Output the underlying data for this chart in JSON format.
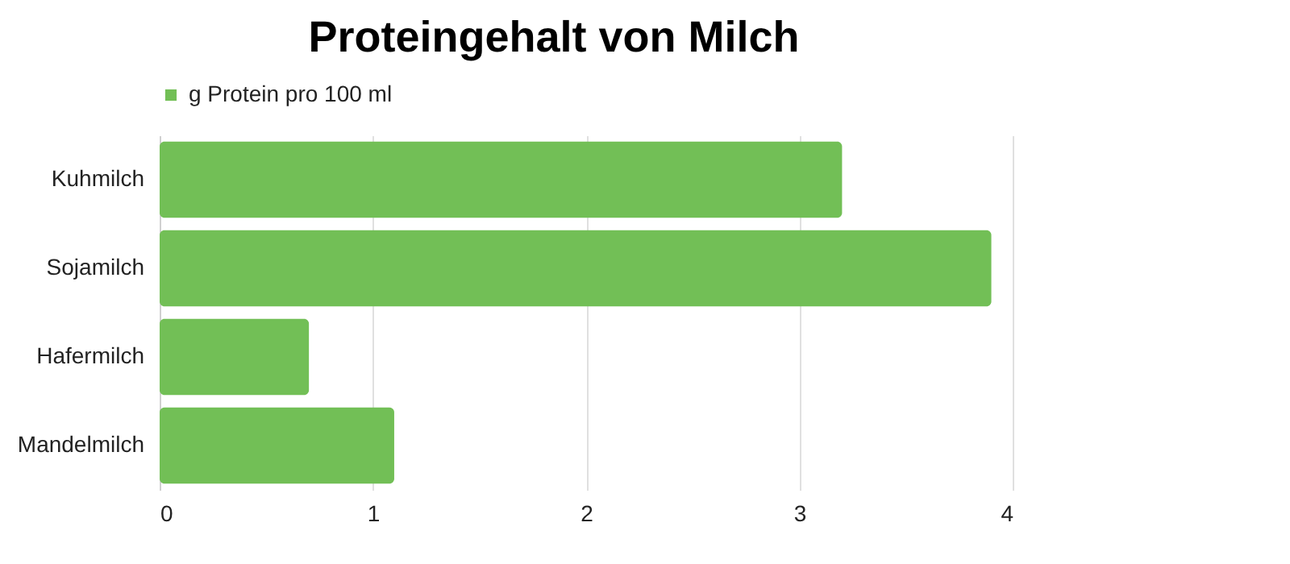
{
  "chart_data": {
    "type": "bar",
    "title": "Proteingehalt von Milch",
    "orientation": "horizontal",
    "categories": [
      "Kuhmilch",
      "Sojamilch",
      "Hafermilch",
      "Mandelmilch"
    ],
    "series": [
      {
        "name": "g Protein pro 100 ml",
        "color": "#72bf56",
        "values": [
          3.2,
          3.9,
          0.7,
          1.1
        ]
      }
    ],
    "xlim": [
      0,
      4
    ],
    "xticks": [
      0,
      1,
      2,
      3,
      4
    ],
    "grid": "x",
    "legend": "top"
  }
}
